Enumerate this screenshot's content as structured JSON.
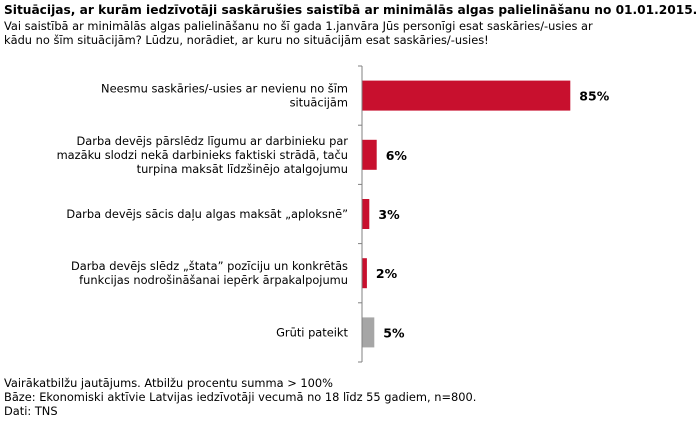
{
  "chart_data": {
    "type": "bar",
    "orientation": "horizontal",
    "title": "Situācijas, ar kurām iedzīvotāji saskārušies saistībā ar minimālās algas palielināšanu no 01.01.2015.",
    "subtitle": "Vai saistībā ar minimālās algas palielināšanu no šī gada 1.janvāra Jūs personīgi esat saskāries/-usies ar kādu no šīm situācijām? Lūdzu, norādiet, ar kuru no situācijām esat saskāries/-usies!",
    "categories": [
      [
        "Neesmu saskāries/-usies ar nevienu no šīm",
        "situācijām"
      ],
      [
        "Darba devējs pārslēdz līgumu ar darbinieku par",
        "mazāku slodzi nekā darbinieks faktiski strādā, taču",
        "turpina maksāt līdzšinējo atalgojumu"
      ],
      [
        "Darba devējs sācis daļu algas maksāt „aploksnē”"
      ],
      [
        "Darba devējs slēdz „štata” pozīciju un konkrētās",
        "funkcijas nodrošināšanai iepērk ārpakalpojumu"
      ],
      [
        "Grūti pateikt"
      ]
    ],
    "values": [
      85,
      6,
      3,
      2,
      5
    ],
    "value_labels": [
      "85%",
      "6%",
      "3%",
      "2%",
      "5%"
    ],
    "bar_colors": [
      "#c8102e",
      "#c8102e",
      "#c8102e",
      "#c8102e",
      "#a6a6a6"
    ],
    "xlim": [
      0,
      100
    ],
    "grid": false,
    "legend": "none"
  },
  "footer": {
    "note": "Vairākatbilžu jautājums. Atbilžu procentu summa > 100%",
    "base": "Bāze: Ekonomiski aktīvie Latvijas iedzīvotāji vecumā no 18 līdz 55 gadiem, n=800.",
    "source": "Dati: TNS"
  }
}
